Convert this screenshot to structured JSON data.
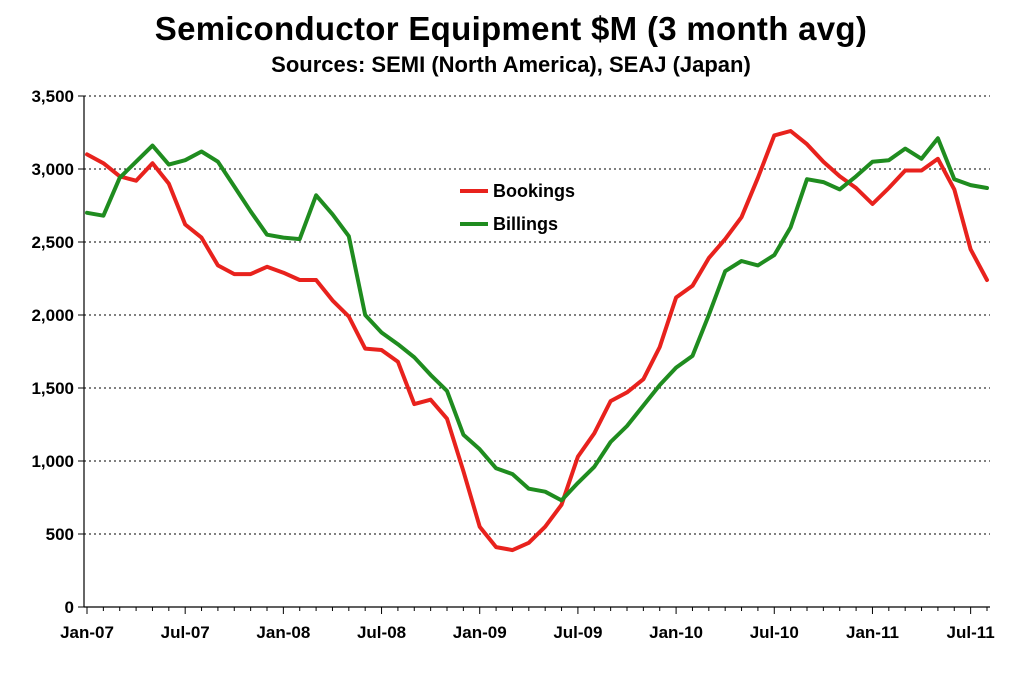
{
  "chart_data": {
    "type": "line",
    "title": "Semiconductor Equipment $M (3 month avg)",
    "subtitle": "Sources: SEMI (North America), SEAJ (Japan)",
    "xlabel": "",
    "ylabel": "",
    "ylim": [
      0,
      3500
    ],
    "yticks": [
      0,
      500,
      1000,
      1500,
      2000,
      2500,
      3000,
      3500
    ],
    "ytick_labels": [
      "0",
      "500",
      "1,000",
      "1,500",
      "2,000",
      "2,500",
      "3,000",
      "3,500"
    ],
    "xtick_labels": [
      "Jan-07",
      "Jul-07",
      "Jan-08",
      "Jul-08",
      "Jan-09",
      "Jul-09",
      "Jan-10",
      "Jul-10",
      "Jan-11",
      "Jul-11"
    ],
    "grid": "horizontal dotted",
    "legend_position": "upper-center",
    "x": [
      "Jan-07",
      "Feb-07",
      "Mar-07",
      "Apr-07",
      "May-07",
      "Jun-07",
      "Jul-07",
      "Aug-07",
      "Sep-07",
      "Oct-07",
      "Nov-07",
      "Dec-07",
      "Jan-08",
      "Feb-08",
      "Mar-08",
      "Apr-08",
      "May-08",
      "Jun-08",
      "Jul-08",
      "Aug-08",
      "Sep-08",
      "Oct-08",
      "Nov-08",
      "Dec-08",
      "Jan-09",
      "Feb-09",
      "Mar-09",
      "Apr-09",
      "May-09",
      "Jun-09",
      "Jul-09",
      "Aug-09",
      "Sep-09",
      "Oct-09",
      "Nov-09",
      "Dec-09",
      "Jan-10",
      "Feb-10",
      "Mar-10",
      "Apr-10",
      "May-10",
      "Jun-10",
      "Jul-10",
      "Aug-10",
      "Sep-10",
      "Oct-10",
      "Nov-10",
      "Dec-10",
      "Jan-11",
      "Feb-11",
      "Mar-11",
      "Apr-11",
      "May-11",
      "Jun-11",
      "Jul-11",
      "Aug-11"
    ],
    "series": [
      {
        "name": "Bookings",
        "color": "#e8221d",
        "values": [
          3100,
          3040,
          2950,
          2920,
          3040,
          2900,
          2620,
          2530,
          2340,
          2280,
          2280,
          2330,
          2290,
          2240,
          2240,
          2100,
          1990,
          1770,
          1760,
          1680,
          1390,
          1420,
          1290,
          930,
          550,
          410,
          390,
          440,
          550,
          700,
          1030,
          1190,
          1410,
          1470,
          1560,
          1780,
          2120,
          2200,
          2390,
          2520,
          2670,
          2940,
          3230,
          3260,
          3170,
          3050,
          2950,
          2870,
          2760,
          2870,
          2990,
          2990,
          3070,
          2860,
          2450,
          2240
        ]
      },
      {
        "name": "Billings",
        "color": "#1f8c1f",
        "values": [
          2700,
          2680,
          2940,
          3050,
          3160,
          3030,
          3060,
          3120,
          3050,
          2880,
          2710,
          2550,
          2530,
          2520,
          2820,
          2690,
          2540,
          2000,
          1880,
          1800,
          1710,
          1590,
          1480,
          1180,
          1080,
          950,
          910,
          810,
          790,
          730,
          850,
          960,
          1130,
          1240,
          1380,
          1520,
          1640,
          1720,
          2000,
          2300,
          2370,
          2340,
          2410,
          2600,
          2930,
          2910,
          2860,
          2950,
          3050,
          3060,
          3140,
          3070,
          3210,
          2930,
          2890,
          2870
        ]
      }
    ]
  }
}
